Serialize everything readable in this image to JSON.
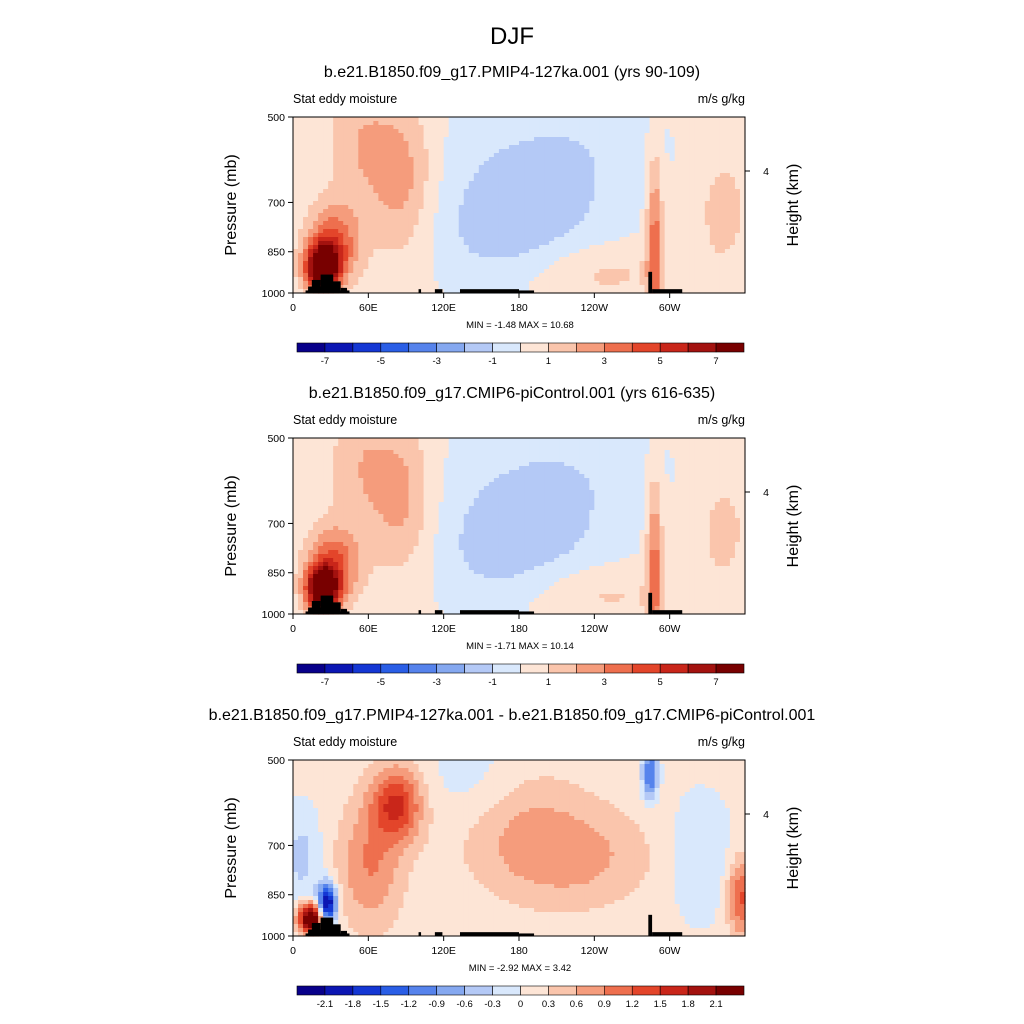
{
  "figure_title": "DJF",
  "chart_data": [
    {
      "type": "heatmap",
      "title": "b.e21.B1850.f09_g17.PMIP4-127ka.001 (yrs 90-109)",
      "subtitle_left": "Stat eddy moisture",
      "subtitle_right": "m/s g/kg",
      "ylabel": "Pressure (mb)",
      "ylabel_right": "Height (km)",
      "x_ticks": [
        "0",
        "60E",
        "120E",
        "180",
        "120W",
        "60W"
      ],
      "x_tick_values": [
        0,
        60,
        120,
        180,
        240,
        300
      ],
      "xlim": [
        0,
        360
      ],
      "y_ticks": [
        "500",
        "700",
        "850",
        "1000"
      ],
      "y_tick_values": [
        500,
        700,
        850,
        1000
      ],
      "ylim": [
        1000,
        500
      ],
      "right_ticks": [
        "4"
      ],
      "minmax_text": "MIN =  -1.48  MAX =  10.68",
      "min": -1.48,
      "max": 10.68,
      "colorbar_levels": [
        -8,
        -7,
        -6,
        -5,
        -4,
        -3,
        -2,
        -1,
        0,
        1,
        2,
        3,
        4,
        5,
        6,
        7,
        8
      ],
      "colorbar_labels": [
        "-7",
        "-5",
        "-3",
        "-1",
        "1",
        "3",
        "5",
        "7"
      ],
      "colorbar_label_values": [
        -7,
        -5,
        -3,
        -1,
        1,
        3,
        5,
        7
      ],
      "field_scale": 1.0
    },
    {
      "type": "heatmap",
      "title": "b.e21.B1850.f09_g17.CMIP6-piControl.001 (yrs 616-635)",
      "subtitle_left": "Stat eddy moisture",
      "subtitle_right": "m/s g/kg",
      "ylabel": "Pressure (mb)",
      "ylabel_right": "Height (km)",
      "x_ticks": [
        "0",
        "60E",
        "120E",
        "180",
        "120W",
        "60W"
      ],
      "x_tick_values": [
        0,
        60,
        120,
        180,
        240,
        300
      ],
      "xlim": [
        0,
        360
      ],
      "y_ticks": [
        "500",
        "700",
        "850",
        "1000"
      ],
      "y_tick_values": [
        500,
        700,
        850,
        1000
      ],
      "ylim": [
        1000,
        500
      ],
      "right_ticks": [
        "4"
      ],
      "minmax_text": "MIN =  -1.71  MAX =  10.14",
      "min": -1.71,
      "max": 10.14,
      "colorbar_levels": [
        -8,
        -7,
        -6,
        -5,
        -4,
        -3,
        -2,
        -1,
        0,
        1,
        2,
        3,
        4,
        5,
        6,
        7,
        8
      ],
      "colorbar_labels": [
        "-7",
        "-5",
        "-3",
        "-1",
        "1",
        "3",
        "5",
        "7"
      ],
      "colorbar_label_values": [
        -7,
        -5,
        -3,
        -1,
        1,
        3,
        5,
        7
      ],
      "field_scale": 0.95
    },
    {
      "type": "heatmap",
      "title": "b.e21.B1850.f09_g17.PMIP4-127ka.001 - b.e21.B1850.f09_g17.CMIP6-piControl.001",
      "subtitle_left": "Stat eddy moisture",
      "subtitle_right": "m/s g/kg",
      "ylabel": "Pressure (mb)",
      "ylabel_right": "Height (km)",
      "x_ticks": [
        "0",
        "60E",
        "120E",
        "180",
        "120W",
        "60W"
      ],
      "x_tick_values": [
        0,
        60,
        120,
        180,
        240,
        300
      ],
      "xlim": [
        0,
        360
      ],
      "y_ticks": [
        "500",
        "700",
        "850",
        "1000"
      ],
      "y_tick_values": [
        500,
        700,
        850,
        1000
      ],
      "ylim": [
        1000,
        500
      ],
      "right_ticks": [
        "4"
      ],
      "minmax_text": "MIN =  -2.92  MAX =   3.42",
      "min": -2.92,
      "max": 3.42,
      "colorbar_levels": [
        -2.4,
        -2.1,
        -1.8,
        -1.5,
        -1.2,
        -0.9,
        -0.6,
        -0.3,
        0,
        0.3,
        0.6,
        0.9,
        1.2,
        1.5,
        1.8,
        2.1,
        2.4
      ],
      "colorbar_labels": [
        "-2.1",
        "-1.8",
        "-1.5",
        "-1.2",
        "-0.9",
        "-0.6",
        "-0.3",
        "0",
        "0.3",
        "0.6",
        "0.9",
        "1.2",
        "1.5",
        "1.8",
        "2.1"
      ],
      "colorbar_label_values": [
        -2.1,
        -1.8,
        -1.5,
        -1.2,
        -0.9,
        -0.6,
        -0.3,
        0,
        0.3,
        0.6,
        0.9,
        1.2,
        1.5,
        1.8,
        2.1
      ],
      "field_scale": 0.3
    }
  ],
  "colormap": [
    "#08008a",
    "#0b16b3",
    "#1437d4",
    "#2a5ee6",
    "#5683ec",
    "#85a8f0",
    "#b4c9f6",
    "#d9e8fc",
    "#fde5d6",
    "#fac5ac",
    "#f59c7c",
    "#ee6f4e",
    "#e3452a",
    "#c9261a",
    "#a3120f",
    "#780000"
  ]
}
